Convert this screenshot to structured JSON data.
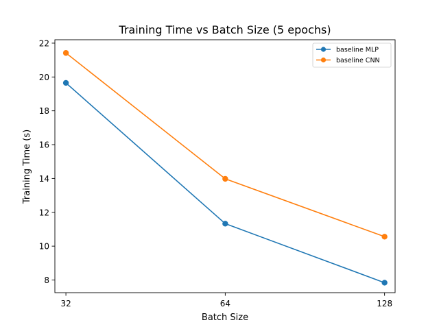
{
  "chart_data": {
    "type": "line",
    "title": "Training Time vs Batch Size (5 epochs)",
    "xlabel": "Batch Size",
    "ylabel": "Training Time (s)",
    "x": [
      32,
      64,
      128
    ],
    "x_tick_labels": [
      "32",
      "64",
      "128"
    ],
    "x_scale": "log2",
    "xlim": [
      30.5,
      134
    ],
    "ylim": [
      7.25,
      22.2
    ],
    "y_ticks": [
      8,
      10,
      12,
      14,
      16,
      18,
      20,
      22
    ],
    "grid": false,
    "legend_position": "top-right",
    "series": [
      {
        "name": "baseline MLP",
        "color": "#1f77b4",
        "marker": "circle",
        "values": [
          19.65,
          11.33,
          7.84
        ]
      },
      {
        "name": "baseline CNN",
        "color": "#ff7f0e",
        "marker": "circle",
        "values": [
          21.42,
          13.98,
          10.56
        ]
      }
    ]
  }
}
